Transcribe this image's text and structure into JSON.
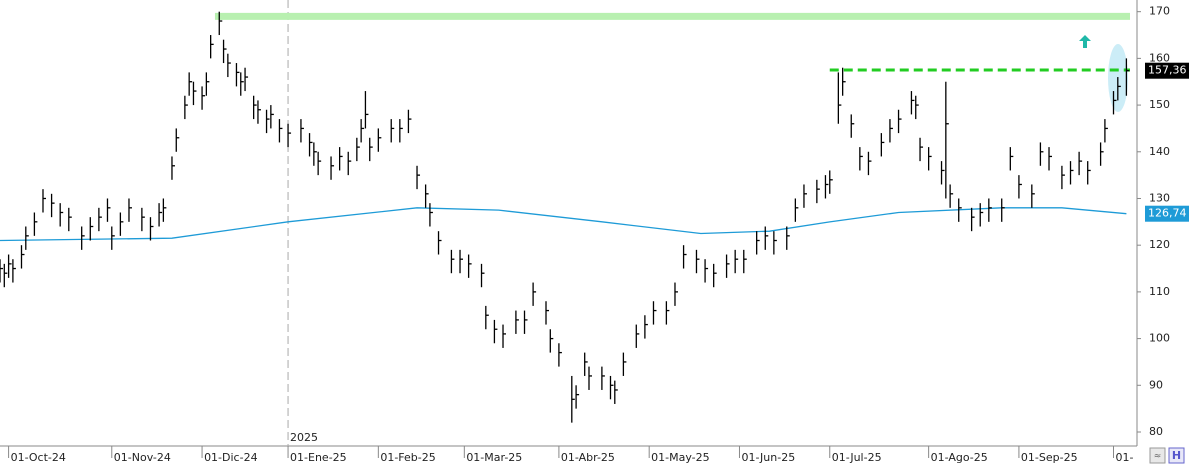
{
  "chart_data": {
    "type": "hlc",
    "x": [
      0,
      1,
      2,
      3,
      5,
      6,
      8,
      10,
      12,
      14,
      16,
      19,
      21,
      23,
      25,
      26,
      28,
      30,
      33,
      35,
      37,
      38,
      40,
      41,
      43,
      44,
      45,
      47,
      48,
      49,
      51,
      52,
      53,
      55,
      56,
      57,
      59,
      60,
      62,
      63,
      65,
      67,
      70,
      72,
      73,
      74,
      77,
      79,
      81,
      83,
      84,
      85,
      86,
      88,
      91,
      93,
      95,
      97,
      99,
      100,
      102,
      105,
      107,
      109,
      112,
      113,
      115,
      117,
      120,
      122,
      124,
      127,
      128,
      130,
      133,
      134,
      136,
      137,
      140,
      142,
      143,
      145,
      148,
      150,
      152,
      155,
      157,
      159,
      162,
      164,
      166,
      169,
      171,
      173,
      176,
      178,
      180,
      183,
      185,
      187,
      190,
      192,
      193,
      195,
      196,
      198,
      200,
      202,
      205,
      207,
      209,
      212,
      213,
      214,
      216,
      219,
      220,
      221,
      223,
      226,
      228,
      230,
      233,
      235,
      237,
      240,
      242,
      244,
      247,
      249,
      251,
      253,
      256,
      257,
      259,
      260,
      262
    ],
    "high": [
      117,
      116,
      118,
      117,
      120,
      124,
      127,
      132,
      131,
      129,
      128,
      124,
      126,
      128,
      130,
      124,
      127,
      130,
      128,
      126,
      129,
      130,
      139,
      145,
      152,
      157,
      155,
      154,
      157,
      165,
      170,
      164,
      161,
      159,
      157,
      158,
      152,
      151,
      149,
      150,
      147,
      146,
      147,
      144,
      142,
      140,
      139,
      141,
      140,
      143,
      147,
      153,
      143,
      145,
      147,
      147,
      149,
      137,
      133,
      129,
      123,
      119,
      119,
      118,
      116,
      107,
      104,
      103,
      106,
      106,
      112,
      108,
      102,
      99,
      92,
      90,
      97,
      94,
      94,
      92,
      91,
      97,
      103,
      105,
      108,
      108,
      112,
      120,
      119,
      117,
      116,
      118,
      119,
      119,
      123,
      124,
      123,
      124,
      130,
      133,
      134,
      135,
      136,
      157,
      158,
      148,
      141,
      140,
      144,
      147,
      149,
      153,
      152,
      143,
      141,
      138,
      155,
      133,
      130,
      128,
      129,
      130,
      130,
      141,
      135,
      133,
      142,
      141,
      137,
      138,
      140,
      138,
      142,
      147,
      153,
      156,
      160
    ],
    "low": [
      112,
      111,
      113,
      112,
      115,
      119,
      122,
      127,
      126,
      124,
      123,
      119,
      121,
      123,
      125,
      119,
      122,
      125,
      123,
      121,
      124,
      125,
      134,
      140,
      147,
      152,
      150,
      149,
      152,
      160,
      165,
      159,
      156,
      154,
      152,
      153,
      147,
      146,
      144,
      145,
      142,
      141,
      142,
      139,
      137,
      135,
      134,
      136,
      135,
      138,
      142,
      145,
      138,
      140,
      142,
      142,
      144,
      132,
      128,
      124,
      118,
      114,
      114,
      113,
      111,
      102,
      99,
      98,
      101,
      101,
      107,
      103,
      97,
      94,
      82,
      85,
      92,
      89,
      89,
      87,
      86,
      92,
      98,
      100,
      103,
      103,
      107,
      115,
      114,
      112,
      111,
      113,
      114,
      114,
      118,
      119,
      118,
      119,
      125,
      128,
      129,
      130,
      131,
      146,
      152,
      143,
      136,
      135,
      139,
      142,
      144,
      148,
      147,
      138,
      136,
      133,
      130,
      128,
      125,
      123,
      124,
      125,
      125,
      136,
      130,
      128,
      137,
      136,
      132,
      133,
      135,
      133,
      137,
      142,
      148,
      151,
      152
    ],
    "close": [
      115,
      114,
      116,
      115,
      118,
      122,
      125,
      130,
      129,
      127,
      126,
      122,
      124,
      126,
      128,
      122,
      125,
      128,
      126,
      124,
      127,
      128,
      137,
      143,
      150,
      155,
      153,
      152,
      155,
      163,
      168,
      162,
      159,
      157,
      155,
      156,
      150,
      149,
      147,
      148,
      145,
      144,
      145,
      142,
      140,
      138,
      137,
      139,
      138,
      141,
      145,
      148,
      141,
      143,
      145,
      145,
      147,
      135,
      131,
      127,
      121,
      117,
      117,
      116,
      114,
      105,
      102,
      101,
      104,
      104,
      110,
      106,
      100,
      97,
      87,
      88,
      95,
      92,
      92,
      90,
      89,
      95,
      101,
      103,
      106,
      106,
      110,
      118,
      117,
      115,
      114,
      116,
      117,
      117,
      121,
      122,
      121,
      122,
      128,
      131,
      132,
      133,
      134,
      150,
      155,
      146,
      139,
      138,
      142,
      145,
      147,
      151,
      150,
      141,
      139,
      136,
      146,
      131,
      128,
      126,
      127,
      128,
      128,
      139,
      133,
      131,
      140,
      139,
      135,
      136,
      138,
      136,
      140,
      145,
      151,
      154,
      157.36
    ],
    "close_label": "157,36",
    "color": "#000000",
    "moving_average": {
      "color": "#1e9bd7",
      "x": [
        0,
        40,
        67,
        97,
        116,
        140,
        163,
        179,
        193,
        209,
        233,
        247,
        262
      ],
      "values": [
        121,
        121.5,
        125,
        128,
        127.5,
        125,
        122.5,
        123,
        125,
        127,
        128,
        128,
        126.74
      ],
      "value_label": "126,74"
    },
    "levels": [
      {
        "value": 169,
        "from": 50,
        "style": "band",
        "color": "#b8f0b0"
      },
      {
        "value": 157.5,
        "from": 193,
        "style": "dashed",
        "color": "#22cc22"
      }
    ],
    "year_marker": {
      "x": 67,
      "label": "2025"
    },
    "xlim": [
      0,
      264
    ],
    "ylim": [
      77,
      172.5
    ],
    "yticks": [
      80,
      90,
      100,
      110,
      120,
      130,
      140,
      150,
      160,
      170
    ],
    "xticks": [
      {
        "value": 2,
        "label": "01-Oct-24"
      },
      {
        "value": 26,
        "label": "01-Nov-24"
      },
      {
        "value": 47,
        "label": "01-Dic-24"
      },
      {
        "value": 67,
        "label": "01-Ene-25"
      },
      {
        "value": 88,
        "label": "01-Feb-25"
      },
      {
        "value": 108,
        "label": "01-Mar-25"
      },
      {
        "value": 130,
        "label": "01-Abr-25"
      },
      {
        "value": 151,
        "label": "01-May-25"
      },
      {
        "value": 172,
        "label": "01-Jun-25"
      },
      {
        "value": 193,
        "label": "01-Jul-25"
      },
      {
        "value": 216,
        "label": "01-Ago-25"
      },
      {
        "value": 237,
        "label": "01-Sep-25"
      },
      {
        "value": 259,
        "label": "01-"
      }
    ]
  }
}
